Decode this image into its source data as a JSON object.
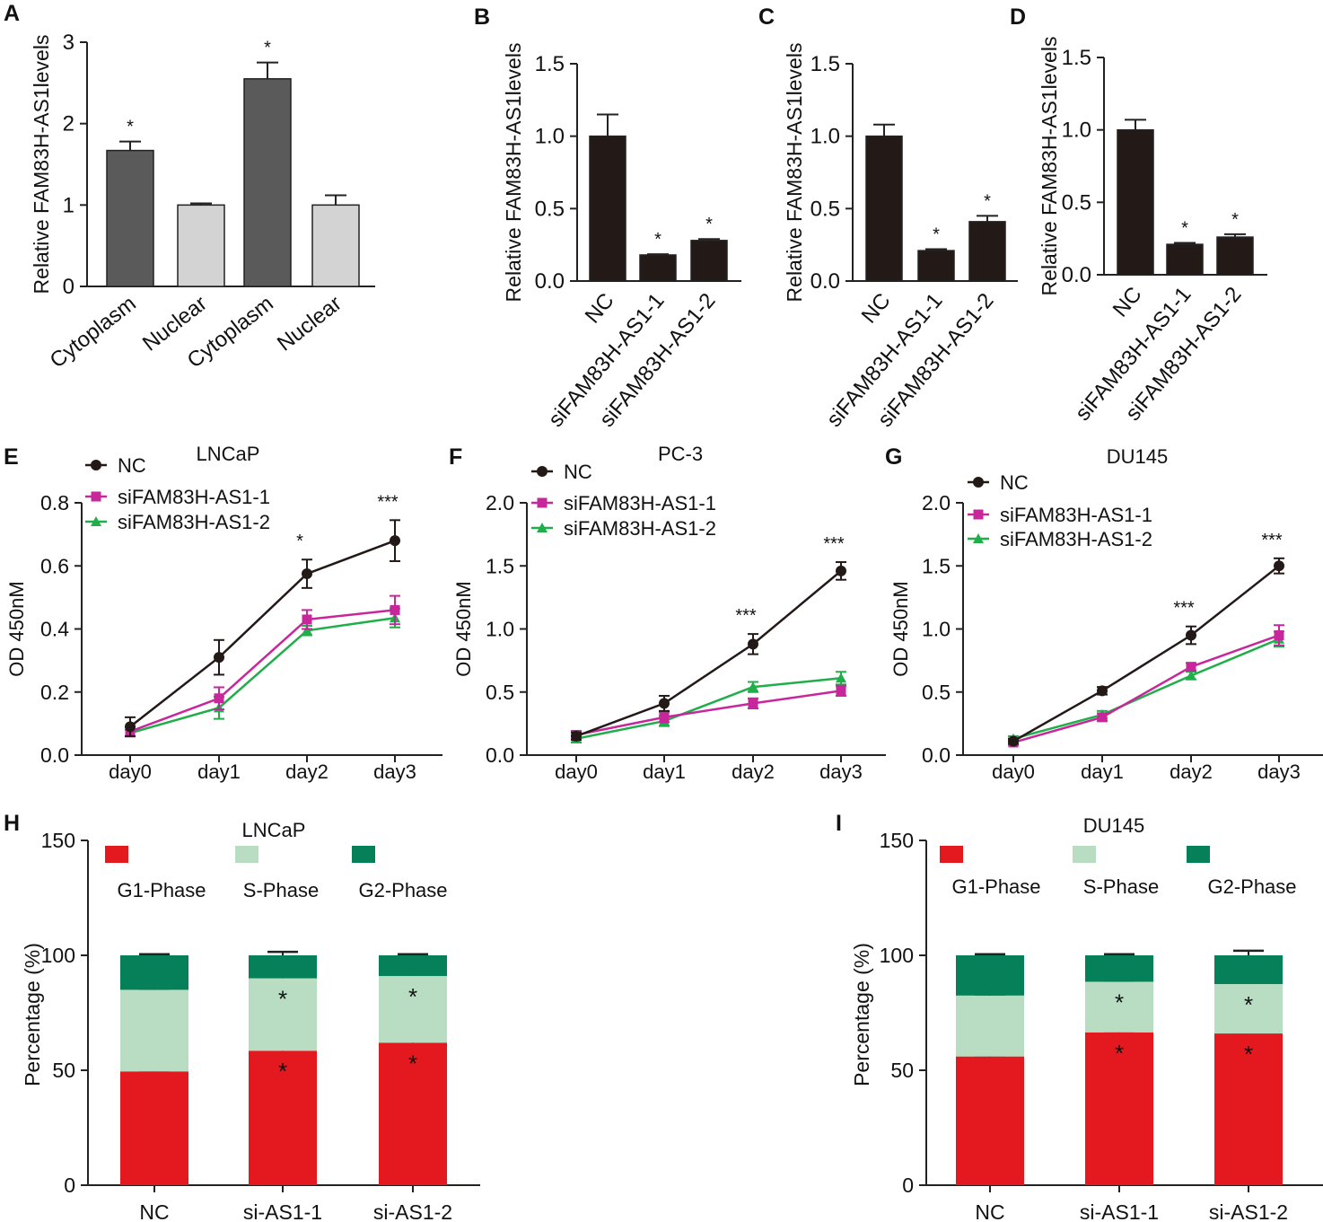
{
  "colors": {
    "bar_dark": "#5a5a5a",
    "bar_light": "#d3d3d3",
    "bar_black": "#231a17",
    "nc": "#231a17",
    "si1": "#c7279b",
    "si2": "#1fae4a",
    "g1": "#e3191f",
    "s": "#b9ddc3",
    "g2": "#058058"
  },
  "chart_data": [
    {
      "panel": "A",
      "type": "bar",
      "categories": [
        "Cytoplasm",
        "Nuclear",
        "Cytoplasm",
        "Nuclear"
      ],
      "values": [
        1.67,
        1.0,
        2.55,
        1.0
      ],
      "errors": [
        0.11,
        0.02,
        0.2,
        0.12
      ],
      "annotations": [
        "*",
        "",
        "*",
        ""
      ],
      "bar_colors": [
        "dark",
        "light",
        "dark",
        "light"
      ],
      "ylabel": "Relative FAM83H-AS1levels",
      "ylim": [
        0,
        3
      ],
      "yticks": [
        "0",
        "1",
        "2",
        "3"
      ],
      "title": ""
    },
    {
      "panel": "B",
      "type": "bar",
      "categories": [
        "NC",
        "siFAM83H-AS1-1",
        "siFAM83H-AS1-2"
      ],
      "values": [
        1.0,
        0.18,
        0.28
      ],
      "errors": [
        0.15,
        0.005,
        0.01
      ],
      "annotations": [
        "",
        "*",
        "*"
      ],
      "ylabel": "Relative FAM83H-AS1levels",
      "ylim": [
        0,
        1.5
      ],
      "yticks": [
        "0.0",
        "0.5",
        "1.0",
        "1.5"
      ],
      "title": ""
    },
    {
      "panel": "C",
      "type": "bar",
      "categories": [
        "NC",
        "siFAM83H-AS1-1",
        "siFAM83H-AS1-2"
      ],
      "values": [
        1.0,
        0.21,
        0.41
      ],
      "errors": [
        0.08,
        0.01,
        0.04
      ],
      "annotations": [
        "",
        "*",
        "*"
      ],
      "ylabel": "Relative FAM83H-AS1levels",
      "ylim": [
        0,
        1.5
      ],
      "yticks": [
        "0.0",
        "0.5",
        "1.0",
        "1.5"
      ],
      "title": ""
    },
    {
      "panel": "D",
      "type": "bar",
      "categories": [
        "NC",
        "siFAM83H-AS1-1",
        "siFAM83H-AS1-2"
      ],
      "values": [
        1.0,
        0.21,
        0.26
      ],
      "errors": [
        0.07,
        0.01,
        0.02
      ],
      "annotations": [
        "",
        "*",
        "*"
      ],
      "ylabel": "Relative FAM83H-AS1levels",
      "ylim": [
        0,
        1.5
      ],
      "yticks": [
        "0.0",
        "0.5",
        "1.0",
        "1.5"
      ],
      "title": ""
    },
    {
      "panel": "E",
      "type": "line",
      "title": "LNCaP",
      "categories": [
        "day0",
        "day1",
        "day2",
        "day3"
      ],
      "series": [
        {
          "name": "NC",
          "key": "nc",
          "marker": "circle",
          "values": [
            0.09,
            0.31,
            0.575,
            0.68
          ],
          "errors": [
            0.03,
            0.055,
            0.045,
            0.065
          ]
        },
        {
          "name": "siFAM83H-AS1-1",
          "key": "si1",
          "marker": "square",
          "values": [
            0.075,
            0.18,
            0.43,
            0.46
          ],
          "errors": [
            0.015,
            0.035,
            0.03,
            0.045
          ]
        },
        {
          "name": "siFAM83H-AS1-2",
          "key": "si2",
          "marker": "triangle",
          "values": [
            0.07,
            0.15,
            0.395,
            0.435
          ],
          "errors": [
            0.01,
            0.035,
            0.015,
            0.03
          ]
        }
      ],
      "annotations": [
        "",
        "",
        "*",
        "***"
      ],
      "ylabel": "OD 450nM",
      "ylim": [
        0,
        0.8
      ],
      "yticks": [
        "0.0",
        "0.2",
        "0.4",
        "0.6",
        "0.8"
      ]
    },
    {
      "panel": "F",
      "type": "line",
      "title": "PC-3",
      "categories": [
        "day0",
        "day1",
        "day2",
        "day3"
      ],
      "series": [
        {
          "name": "NC",
          "key": "nc",
          "marker": "circle",
          "values": [
            0.15,
            0.41,
            0.88,
            1.46
          ],
          "errors": [
            0.03,
            0.06,
            0.08,
            0.07
          ]
        },
        {
          "name": "siFAM83H-AS1-1",
          "key": "si1",
          "marker": "square",
          "values": [
            0.16,
            0.3,
            0.41,
            0.51
          ],
          "errors": [
            0.03,
            0.04,
            0.04,
            0.04
          ]
        },
        {
          "name": "siFAM83H-AS1-2",
          "key": "si2",
          "marker": "triangle",
          "values": [
            0.13,
            0.27,
            0.54,
            0.61
          ],
          "errors": [
            0.03,
            0.04,
            0.04,
            0.05
          ]
        }
      ],
      "annotations": [
        "",
        "",
        "***",
        "***"
      ],
      "ylabel": "OD 450nM",
      "ylim": [
        0,
        2.0
      ],
      "yticks": [
        "0.0",
        "0.5",
        "1.0",
        "1.5",
        "2.0"
      ]
    },
    {
      "panel": "G",
      "type": "line",
      "title": "DU145",
      "categories": [
        "day0",
        "day1",
        "day2",
        "day3"
      ],
      "series": [
        {
          "name": "NC",
          "key": "nc",
          "marker": "circle",
          "values": [
            0.11,
            0.51,
            0.95,
            1.5
          ],
          "errors": [
            0.02,
            0.03,
            0.07,
            0.06
          ]
        },
        {
          "name": "siFAM83H-AS1-1",
          "key": "si1",
          "marker": "square",
          "values": [
            0.1,
            0.3,
            0.7,
            0.95
          ],
          "errors": [
            0.02,
            0.03,
            0.03,
            0.08
          ]
        },
        {
          "name": "siFAM83H-AS1-2",
          "key": "si2",
          "marker": "triangle",
          "values": [
            0.13,
            0.32,
            0.63,
            0.92
          ],
          "errors": [
            0.02,
            0.03,
            0.03,
            0.06
          ]
        }
      ],
      "annotations": [
        "",
        "",
        "***",
        "***"
      ],
      "ylabel": "OD 450nM",
      "ylim": [
        0,
        2.0
      ],
      "yticks": [
        "0.0",
        "0.5",
        "1.0",
        "1.5",
        "2.0"
      ]
    },
    {
      "panel": "H",
      "type": "bar",
      "stacked": true,
      "title": "LNCaP",
      "categories": [
        "NC",
        "si-AS1-1",
        "si-AS1-2"
      ],
      "series": [
        {
          "name": "G1-Phase",
          "key": "g1",
          "values": [
            49.5,
            58.5,
            62.0
          ],
          "errors": [
            0.5,
            1.0,
            1.0
          ],
          "annotations": [
            "",
            "*",
            "*"
          ]
        },
        {
          "name": "S-Phase",
          "key": "s",
          "values": [
            35.5,
            31.5,
            29.0
          ],
          "errors": [
            0.5,
            0.8,
            0.8
          ],
          "annotations": [
            "",
            "*",
            "*"
          ]
        },
        {
          "name": "G2-Phase",
          "key": "g2",
          "values": [
            15.0,
            10.0,
            9.0
          ],
          "errors": [
            0.5,
            1.5,
            0.5
          ],
          "annotations": [
            "",
            "",
            ""
          ]
        }
      ],
      "ylabel": "Percentage (%)",
      "ylim": [
        0,
        150
      ],
      "yticks": [
        "0",
        "50",
        "100",
        "150"
      ]
    },
    {
      "panel": "I",
      "type": "bar",
      "stacked": true,
      "title": "DU145",
      "categories": [
        "NC",
        "si-AS1-1",
        "si-AS1-2"
      ],
      "series": [
        {
          "name": "G1-Phase",
          "key": "g1",
          "values": [
            56.0,
            66.5,
            66.0
          ],
          "errors": [
            0.5,
            0.5,
            2.0
          ],
          "annotations": [
            "",
            "*",
            "*"
          ]
        },
        {
          "name": "S-Phase",
          "key": "s",
          "values": [
            26.5,
            22.0,
            21.5
          ],
          "errors": [
            0.5,
            0.5,
            1.0
          ],
          "annotations": [
            "",
            "*",
            "*"
          ]
        },
        {
          "name": "G2-Phase",
          "key": "g2",
          "values": [
            17.5,
            11.5,
            12.5
          ],
          "errors": [
            0.5,
            0.5,
            2.0
          ],
          "annotations": [
            "",
            "",
            ""
          ]
        }
      ],
      "ylabel": "Percentage (%)",
      "ylim": [
        0,
        150
      ],
      "yticks": [
        "0",
        "50",
        "100",
        "150"
      ]
    }
  ]
}
